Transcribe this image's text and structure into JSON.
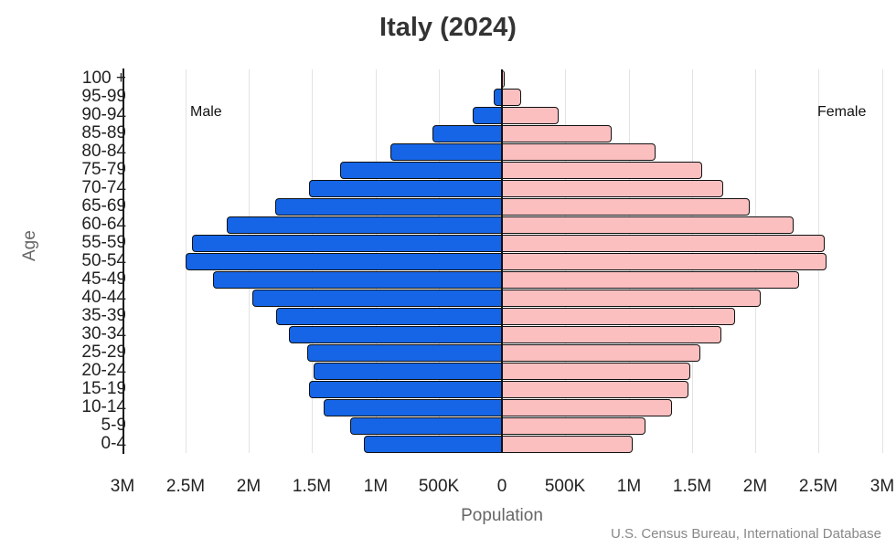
{
  "chart_data": {
    "type": "bar",
    "subtype": "population-pyramid",
    "title": "Italy (2024)",
    "xlabel": "Population",
    "ylabel": "Age",
    "source": "U.S. Census Bureau, International Database",
    "xlim": [
      -3000000,
      3000000
    ],
    "grid": true,
    "legend": {
      "left_label": "Male",
      "right_label": "Female"
    },
    "x_ticks": [
      {
        "label": "3M",
        "value": -3000000
      },
      {
        "label": "2.5M",
        "value": -2500000
      },
      {
        "label": "2M",
        "value": -2000000
      },
      {
        "label": "1.5M",
        "value": -1500000
      },
      {
        "label": "1M",
        "value": -1000000
      },
      {
        "label": "500K",
        "value": -500000
      },
      {
        "label": "0",
        "value": 0
      },
      {
        "label": "500K",
        "value": 500000
      },
      {
        "label": "1M",
        "value": 1000000
      },
      {
        "label": "1.5M",
        "value": 1500000
      },
      {
        "label": "2M",
        "value": 2000000
      },
      {
        "label": "2.5M",
        "value": 2500000
      },
      {
        "label": "3M",
        "value": 3000000
      }
    ],
    "categories": [
      "100 +",
      "95-99",
      "90-94",
      "85-89",
      "80-84",
      "75-79",
      "70-74",
      "65-69",
      "60-64",
      "55-59",
      "50-54",
      "45-49",
      "40-44",
      "35-39",
      "30-34",
      "25-29",
      "20-24",
      "15-19",
      "10-14",
      "5-9",
      "0-4"
    ],
    "series": [
      {
        "name": "Male",
        "color": "#1565e6",
        "values": [
          4000,
          65000,
          230000,
          550000,
          880000,
          1280000,
          1520000,
          1790000,
          2170000,
          2450000,
          2500000,
          2280000,
          1970000,
          1780000,
          1680000,
          1540000,
          1490000,
          1520000,
          1410000,
          1200000,
          1090000
        ]
      },
      {
        "name": "Female",
        "color": "#fcbfc0",
        "values": [
          25000,
          150000,
          450000,
          870000,
          1210000,
          1580000,
          1750000,
          1960000,
          2300000,
          2550000,
          2560000,
          2350000,
          2040000,
          1840000,
          1730000,
          1570000,
          1490000,
          1470000,
          1340000,
          1130000,
          1030000
        ]
      }
    ]
  }
}
